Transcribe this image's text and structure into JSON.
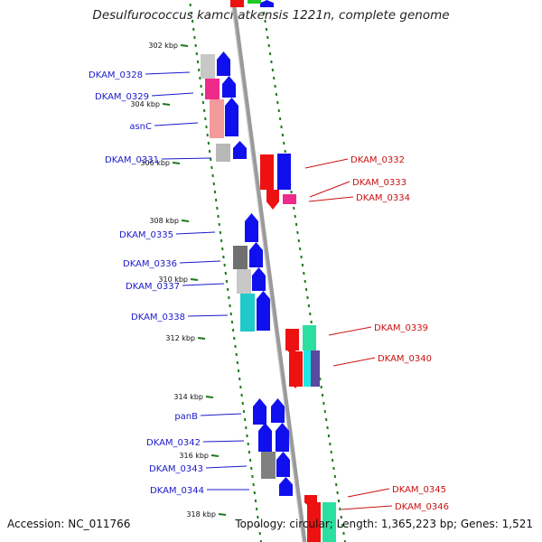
{
  "title": "Desulfurococcus kamchatkensis 1221n, complete genome",
  "footer": {
    "accession": "Accession: NC_011766",
    "summary": "Topology: circular; Length: 1,365,223 bp; Genes: 1,521"
  },
  "colors": {
    "forward_label": "#1a1acc",
    "reverse_label": "#cc1111",
    "gc_track": "#1a7a1a",
    "backbone": "#888888"
  },
  "ticks": [
    "302 kbp",
    "304 kbp",
    "306 kbp",
    "308 kbp",
    "310 kbp",
    "312 kbp",
    "314 kbp",
    "316 kbp",
    "318 kbp"
  ],
  "forward_genes": [
    "DKAM_0328",
    "DKAM_0329",
    "asnC",
    "DKAM_0331",
    "DKAM_0335",
    "DKAM_0336",
    "DKAM_0337",
    "DKAM_0338",
    "panB",
    "DKAM_0342",
    "DKAM_0343",
    "DKAM_0344"
  ],
  "reverse_genes": [
    "DKAM_0332",
    "DKAM_0333",
    "DKAM_0334",
    "DKAM_0339",
    "DKAM_0340",
    "DKAM_0345",
    "DKAM_0346"
  ]
}
